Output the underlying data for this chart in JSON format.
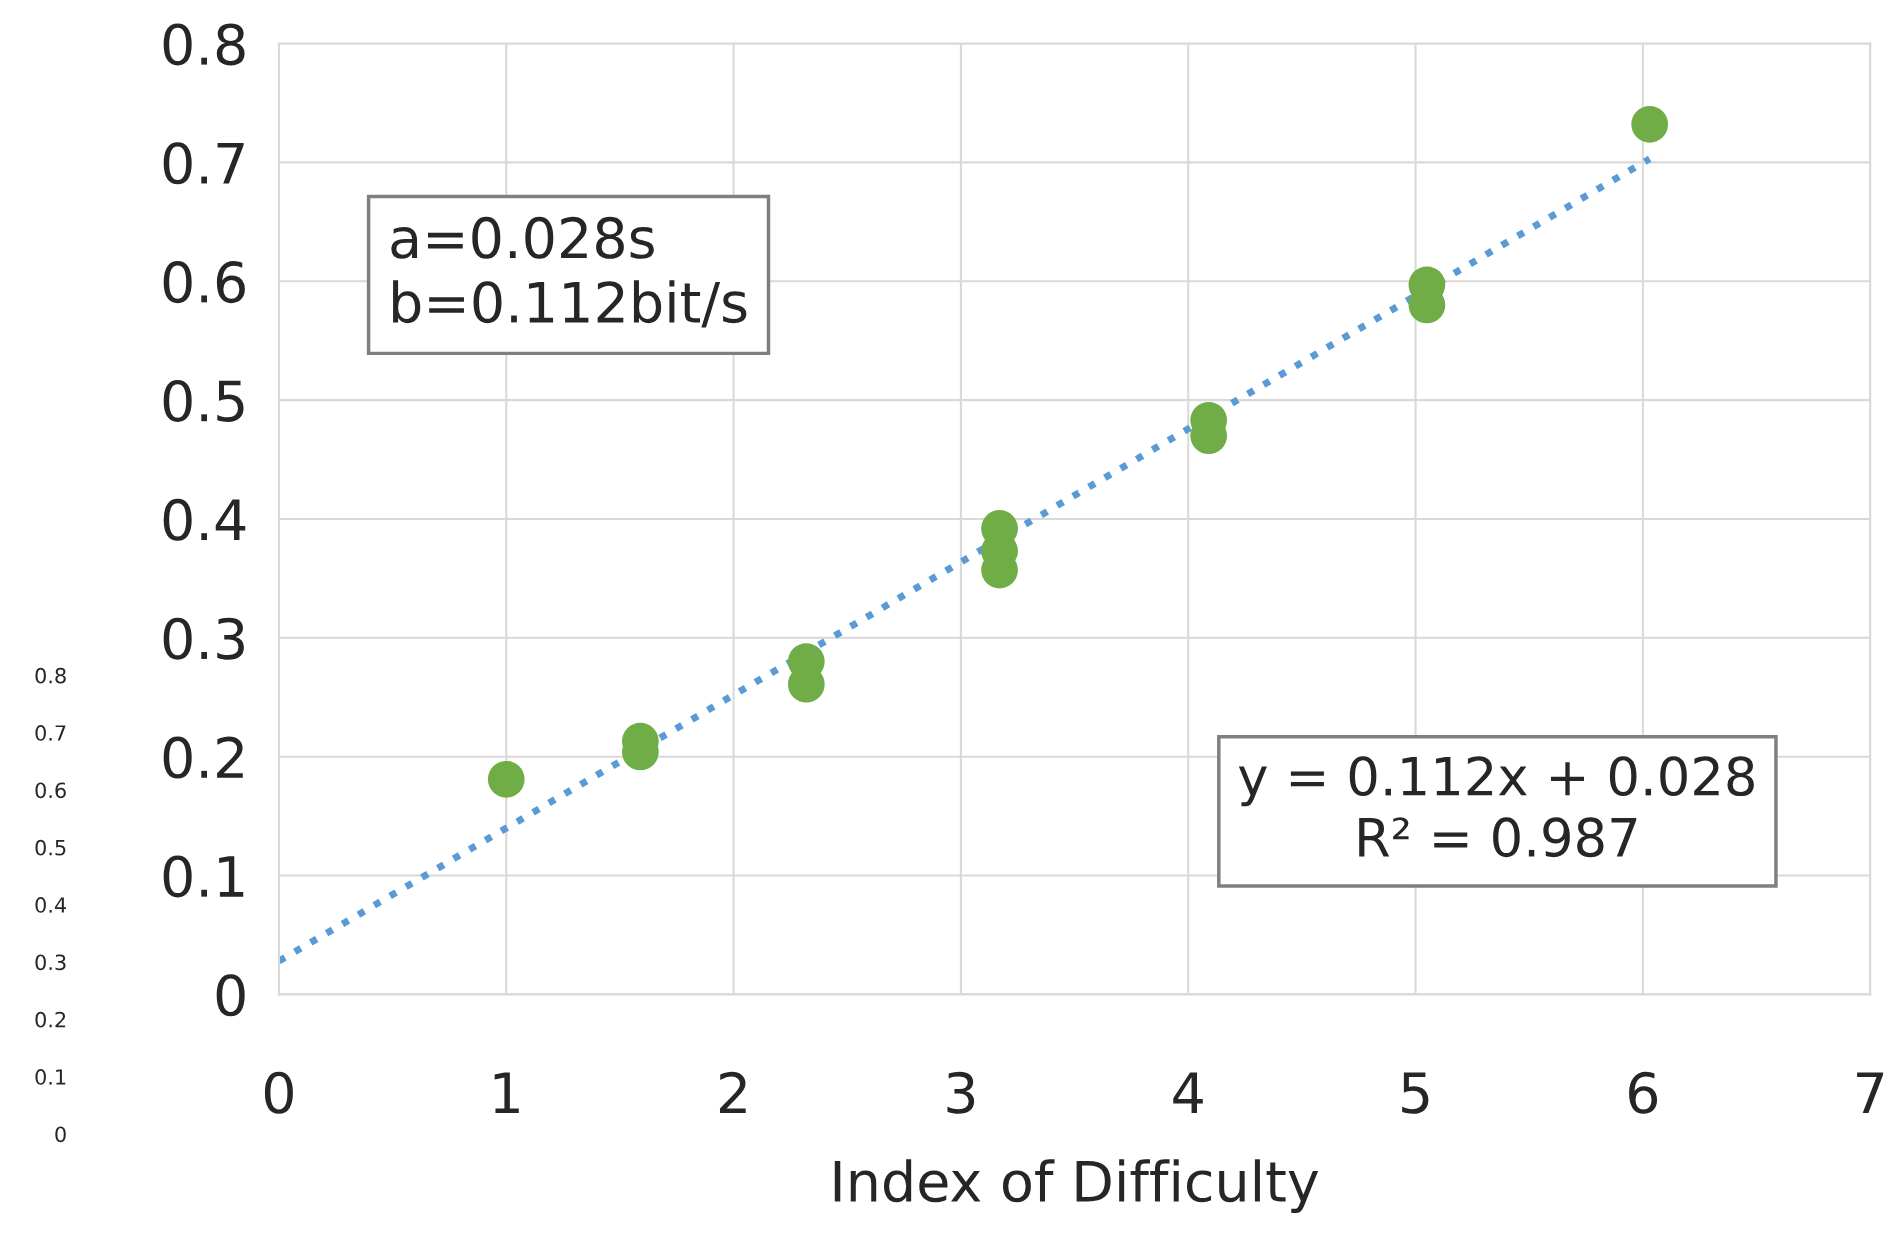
{
  "chart_data": {
    "type": "scatter",
    "xlabel": "Index of Difficulty",
    "x": [
      1.0,
      1.59,
      1.59,
      2.32,
      2.32,
      3.17,
      3.17,
      3.17,
      4.09,
      4.09,
      5.05,
      5.05,
      6.03
    ],
    "series": [
      {
        "color": "#70ad47",
        "marker": "circle",
        "values": [
          0.181,
          0.213,
          0.204,
          0.28,
          0.261,
          0.392,
          0.373,
          0.357,
          0.483,
          0.47,
          0.597,
          0.58,
          0.732
        ]
      },
      {
        "type": "line",
        "color": "#5b9bd5",
        "line_style": "dotted",
        "marker": "none",
        "x": [
          0,
          6.03
        ],
        "values": [
          0.028,
          0.703
        ]
      }
    ],
    "xlim": [
      0,
      7
    ],
    "xticks": [
      0,
      1,
      2,
      3,
      4,
      5,
      6,
      7
    ],
    "ylim": [
      0,
      0.8
    ],
    "yticks": [
      0,
      0.1,
      0.2,
      0.3,
      0.4,
      0.5,
      0.6,
      0.7,
      0.8
    ],
    "y2lim": [
      0,
      0.8
    ],
    "y2ticks": [
      0,
      0.1,
      0.2,
      0.3,
      0.4,
      0.5,
      0.6,
      0.7,
      0.8
    ],
    "grid": true,
    "legend": false,
    "annotations": [
      "a=0.028s\nb=0.112bit/s",
      "y = 0.112x + 0.028\nR² = 0.987"
    ]
  }
}
